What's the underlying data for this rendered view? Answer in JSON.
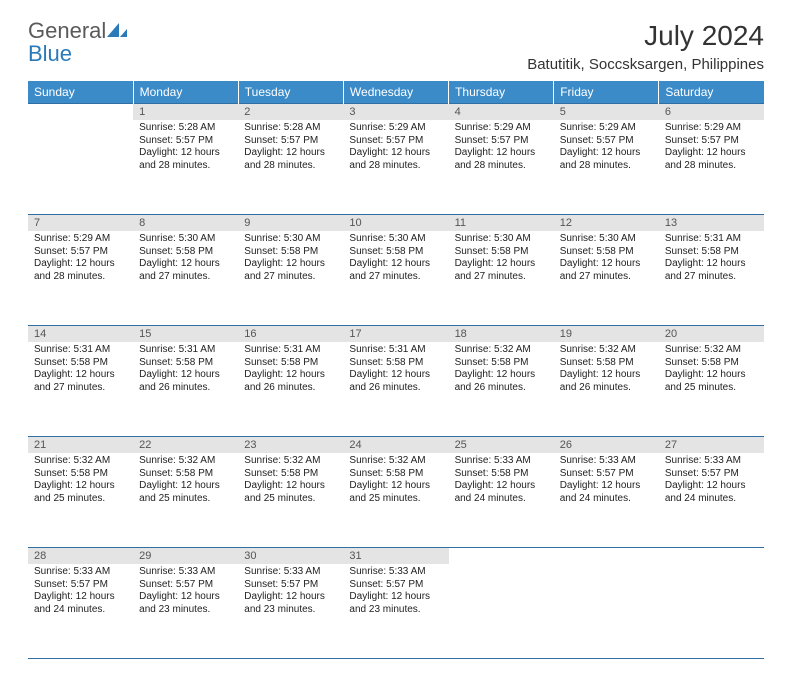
{
  "brand": {
    "word1": "General",
    "word2": "Blue"
  },
  "title": "July 2024",
  "subtitle": "Batutitik, Soccsksargen, Philippines",
  "colors": {
    "header_bg": "#3b8bc9",
    "header_text": "#ffffff",
    "daynum_bg": "#e4e4e4",
    "daynum_text": "#555555",
    "rule": "#2f6fa3",
    "body_text": "#222222",
    "logo_gray": "#5a5a5a",
    "logo_blue": "#2a7ab9",
    "page_bg": "#ffffff"
  },
  "typography": {
    "title_fontsize": 28,
    "subtitle_fontsize": 15,
    "dayheader_fontsize": 12,
    "daynum_fontsize": 11,
    "cell_fontsize": 10
  },
  "days": [
    "Sunday",
    "Monday",
    "Tuesday",
    "Wednesday",
    "Thursday",
    "Friday",
    "Saturday"
  ],
  "weeks": [
    {
      "nums": [
        "",
        "1",
        "2",
        "3",
        "4",
        "5",
        "6"
      ],
      "cells": [
        {
          "sunrise": "",
          "sunset": "",
          "daylight": ""
        },
        {
          "sunrise": "Sunrise: 5:28 AM",
          "sunset": "Sunset: 5:57 PM",
          "daylight": "Daylight: 12 hours and 28 minutes."
        },
        {
          "sunrise": "Sunrise: 5:28 AM",
          "sunset": "Sunset: 5:57 PM",
          "daylight": "Daylight: 12 hours and 28 minutes."
        },
        {
          "sunrise": "Sunrise: 5:29 AM",
          "sunset": "Sunset: 5:57 PM",
          "daylight": "Daylight: 12 hours and 28 minutes."
        },
        {
          "sunrise": "Sunrise: 5:29 AM",
          "sunset": "Sunset: 5:57 PM",
          "daylight": "Daylight: 12 hours and 28 minutes."
        },
        {
          "sunrise": "Sunrise: 5:29 AM",
          "sunset": "Sunset: 5:57 PM",
          "daylight": "Daylight: 12 hours and 28 minutes."
        },
        {
          "sunrise": "Sunrise: 5:29 AM",
          "sunset": "Sunset: 5:57 PM",
          "daylight": "Daylight: 12 hours and 28 minutes."
        }
      ]
    },
    {
      "nums": [
        "7",
        "8",
        "9",
        "10",
        "11",
        "12",
        "13"
      ],
      "cells": [
        {
          "sunrise": "Sunrise: 5:29 AM",
          "sunset": "Sunset: 5:57 PM",
          "daylight": "Daylight: 12 hours and 28 minutes."
        },
        {
          "sunrise": "Sunrise: 5:30 AM",
          "sunset": "Sunset: 5:58 PM",
          "daylight": "Daylight: 12 hours and 27 minutes."
        },
        {
          "sunrise": "Sunrise: 5:30 AM",
          "sunset": "Sunset: 5:58 PM",
          "daylight": "Daylight: 12 hours and 27 minutes."
        },
        {
          "sunrise": "Sunrise: 5:30 AM",
          "sunset": "Sunset: 5:58 PM",
          "daylight": "Daylight: 12 hours and 27 minutes."
        },
        {
          "sunrise": "Sunrise: 5:30 AM",
          "sunset": "Sunset: 5:58 PM",
          "daylight": "Daylight: 12 hours and 27 minutes."
        },
        {
          "sunrise": "Sunrise: 5:30 AM",
          "sunset": "Sunset: 5:58 PM",
          "daylight": "Daylight: 12 hours and 27 minutes."
        },
        {
          "sunrise": "Sunrise: 5:31 AM",
          "sunset": "Sunset: 5:58 PM",
          "daylight": "Daylight: 12 hours and 27 minutes."
        }
      ]
    },
    {
      "nums": [
        "14",
        "15",
        "16",
        "17",
        "18",
        "19",
        "20"
      ],
      "cells": [
        {
          "sunrise": "Sunrise: 5:31 AM",
          "sunset": "Sunset: 5:58 PM",
          "daylight": "Daylight: 12 hours and 27 minutes."
        },
        {
          "sunrise": "Sunrise: 5:31 AM",
          "sunset": "Sunset: 5:58 PM",
          "daylight": "Daylight: 12 hours and 26 minutes."
        },
        {
          "sunrise": "Sunrise: 5:31 AM",
          "sunset": "Sunset: 5:58 PM",
          "daylight": "Daylight: 12 hours and 26 minutes."
        },
        {
          "sunrise": "Sunrise: 5:31 AM",
          "sunset": "Sunset: 5:58 PM",
          "daylight": "Daylight: 12 hours and 26 minutes."
        },
        {
          "sunrise": "Sunrise: 5:32 AM",
          "sunset": "Sunset: 5:58 PM",
          "daylight": "Daylight: 12 hours and 26 minutes."
        },
        {
          "sunrise": "Sunrise: 5:32 AM",
          "sunset": "Sunset: 5:58 PM",
          "daylight": "Daylight: 12 hours and 26 minutes."
        },
        {
          "sunrise": "Sunrise: 5:32 AM",
          "sunset": "Sunset: 5:58 PM",
          "daylight": "Daylight: 12 hours and 25 minutes."
        }
      ]
    },
    {
      "nums": [
        "21",
        "22",
        "23",
        "24",
        "25",
        "26",
        "27"
      ],
      "cells": [
        {
          "sunrise": "Sunrise: 5:32 AM",
          "sunset": "Sunset: 5:58 PM",
          "daylight": "Daylight: 12 hours and 25 minutes."
        },
        {
          "sunrise": "Sunrise: 5:32 AM",
          "sunset": "Sunset: 5:58 PM",
          "daylight": "Daylight: 12 hours and 25 minutes."
        },
        {
          "sunrise": "Sunrise: 5:32 AM",
          "sunset": "Sunset: 5:58 PM",
          "daylight": "Daylight: 12 hours and 25 minutes."
        },
        {
          "sunrise": "Sunrise: 5:32 AM",
          "sunset": "Sunset: 5:58 PM",
          "daylight": "Daylight: 12 hours and 25 minutes."
        },
        {
          "sunrise": "Sunrise: 5:33 AM",
          "sunset": "Sunset: 5:58 PM",
          "daylight": "Daylight: 12 hours and 24 minutes."
        },
        {
          "sunrise": "Sunrise: 5:33 AM",
          "sunset": "Sunset: 5:57 PM",
          "daylight": "Daylight: 12 hours and 24 minutes."
        },
        {
          "sunrise": "Sunrise: 5:33 AM",
          "sunset": "Sunset: 5:57 PM",
          "daylight": "Daylight: 12 hours and 24 minutes."
        }
      ]
    },
    {
      "nums": [
        "28",
        "29",
        "30",
        "31",
        "",
        "",
        ""
      ],
      "cells": [
        {
          "sunrise": "Sunrise: 5:33 AM",
          "sunset": "Sunset: 5:57 PM",
          "daylight": "Daylight: 12 hours and 24 minutes."
        },
        {
          "sunrise": "Sunrise: 5:33 AM",
          "sunset": "Sunset: 5:57 PM",
          "daylight": "Daylight: 12 hours and 23 minutes."
        },
        {
          "sunrise": "Sunrise: 5:33 AM",
          "sunset": "Sunset: 5:57 PM",
          "daylight": "Daylight: 12 hours and 23 minutes."
        },
        {
          "sunrise": "Sunrise: 5:33 AM",
          "sunset": "Sunset: 5:57 PM",
          "daylight": "Daylight: 12 hours and 23 minutes."
        },
        {
          "sunrise": "",
          "sunset": "",
          "daylight": ""
        },
        {
          "sunrise": "",
          "sunset": "",
          "daylight": ""
        },
        {
          "sunrise": "",
          "sunset": "",
          "daylight": ""
        }
      ]
    }
  ]
}
